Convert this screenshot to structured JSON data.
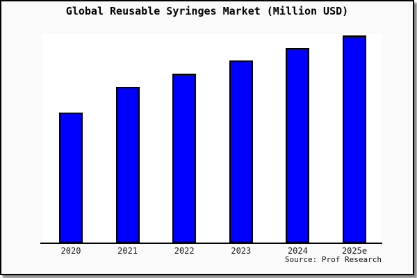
{
  "window": {
    "title": "Global Reusable Syringes Market (Million USD)",
    "source_note": "Source: Prof Research"
  },
  "colors": {
    "bar_fill": "#0000ff",
    "bar_outline": "#000000",
    "figure_background": "#fafafa",
    "plot_background": "#ffffff",
    "frame_border": "#000000",
    "frame_shadow": "#8c8c8c",
    "text": "#000000"
  },
  "chart_data": {
    "type": "bar",
    "title": "Global Reusable Syringes Market (Million USD)",
    "categories": [
      "2020",
      "2021",
      "2022",
      "2023",
      "2024",
      "2025e"
    ],
    "values": [
      187,
      224,
      243,
      262,
      280,
      298
    ],
    "values_unit": "bar height in screenshot pixels (no numeric y-axis shown in image)",
    "values_relative_to_max": [
      0.63,
      0.75,
      0.82,
      0.88,
      0.94,
      1.0
    ],
    "xlabel": "",
    "ylabel": "",
    "y_axis_tick_labels": [],
    "grid": false,
    "legend_position": "none",
    "bar_color": "#0000ff",
    "source_note": "Source: Prof Research"
  }
}
